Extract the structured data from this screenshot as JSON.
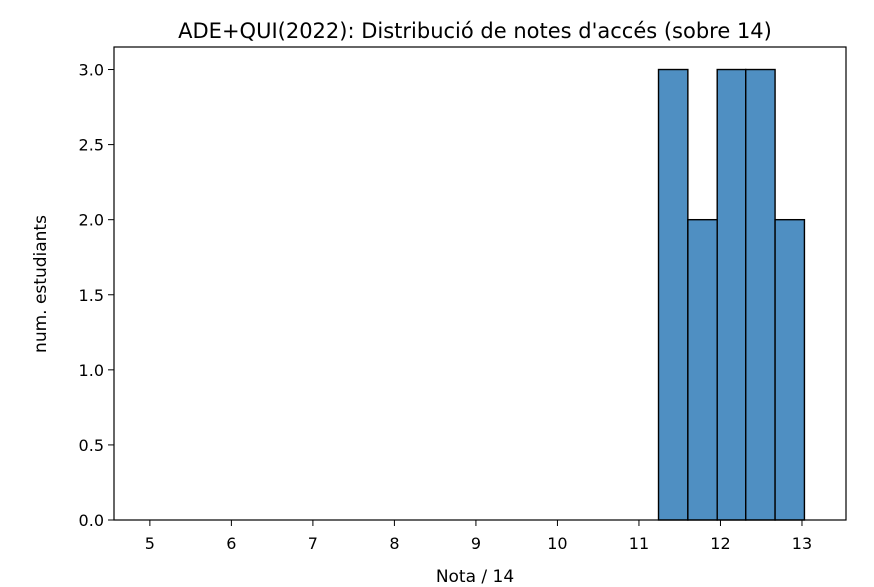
{
  "chart_data": {
    "type": "bar",
    "title": "ADE+QUI(2022): Distribució de notes d'accés (sobre 14)",
    "xlabel": "Nota / 14",
    "ylabel": "num. estudiants",
    "xlim": [
      4.56,
      13.54
    ],
    "ylim": [
      0,
      3.15
    ],
    "xticks": [
      5,
      6,
      7,
      8,
      9,
      10,
      11,
      12,
      13
    ],
    "yticks": [
      "0.0",
      "0.5",
      "1.0",
      "1.5",
      "2.0",
      "2.5",
      "3.0"
    ],
    "bin_edges": [
      11.24,
      11.6,
      11.96,
      12.31,
      12.67,
      13.03
    ],
    "values": [
      3,
      2,
      3,
      3,
      2
    ],
    "bar_color": "#4f8fc2",
    "edge_color": "#000000",
    "grid": false,
    "legend": "none"
  }
}
